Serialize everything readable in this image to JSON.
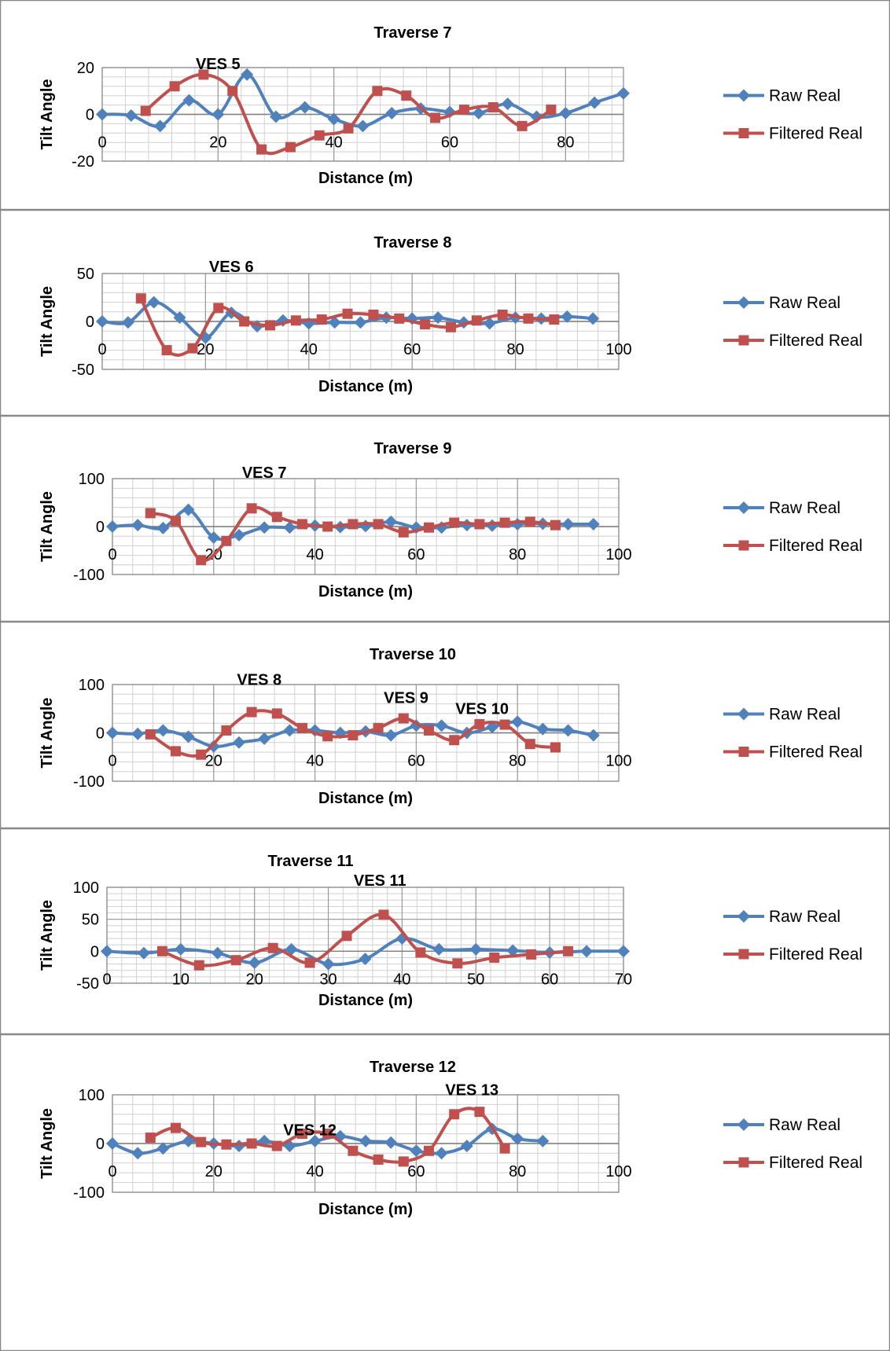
{
  "colors": {
    "raw": "#4F81BD",
    "filtered": "#C0504D",
    "grid": "#b3b3b3",
    "border": "#888888"
  },
  "chart_data": [
    {
      "type": "line",
      "title": "Traverse 7",
      "xlabel": "Distance (m)",
      "ylabel": "Tilt Angle",
      "xlim": [
        0,
        90
      ],
      "ylim": [
        -20,
        20
      ],
      "xticks": [
        0,
        20,
        40,
        60,
        80
      ],
      "yticks": [
        -20,
        0,
        20
      ],
      "grid": true,
      "legend": "right",
      "annotations": [
        {
          "text": "VES 5",
          "x": 20,
          "y": 22
        }
      ],
      "series": [
        {
          "name": "Raw Real",
          "x": [
            0,
            5,
            10,
            15,
            20,
            25,
            30,
            35,
            40,
            45,
            50,
            55,
            60,
            65,
            70,
            75,
            80,
            85,
            90
          ],
          "y": [
            0,
            -0.5,
            -5,
            6,
            0,
            17,
            -1,
            3,
            -2,
            -5,
            0.5,
            2.5,
            1,
            0.5,
            4.5,
            -1,
            0.5,
            5,
            9
          ]
        },
        {
          "name": "Filtered Real",
          "x": [
            7.5,
            12.5,
            17.5,
            22.5,
            27.5,
            32.5,
            37.5,
            42.5,
            47.5,
            52.5,
            57.5,
            62.5,
            67.5,
            72.5,
            77.5
          ],
          "y": [
            1.5,
            12,
            17,
            10,
            -15,
            -14,
            -9,
            -6,
            10,
            8,
            -1.5,
            2,
            3,
            -5,
            2
          ]
        }
      ]
    },
    {
      "type": "line",
      "title": "Traverse 8",
      "xlabel": "Distance (m)",
      "ylabel": "Tilt Angle",
      "xlim": [
        0,
        100
      ],
      "ylim": [
        -50,
        50
      ],
      "xticks": [
        0,
        20,
        40,
        60,
        80,
        100
      ],
      "yticks": [
        -50,
        0,
        50
      ],
      "grid": true,
      "legend": "right",
      "annotations": [
        {
          "text": "VES 6",
          "x": 25,
          "y": 58
        }
      ],
      "series": [
        {
          "name": "Raw Real",
          "x": [
            0,
            5,
            10,
            15,
            20,
            25,
            30,
            35,
            40,
            45,
            50,
            55,
            60,
            65,
            70,
            75,
            80,
            85,
            90,
            95
          ],
          "y": [
            0,
            -1,
            20,
            4,
            -17,
            9,
            -5,
            1,
            -2,
            -1,
            -1,
            4,
            3,
            4,
            -1,
            -2,
            4,
            3,
            5,
            3
          ]
        },
        {
          "name": "Filtered Real",
          "x": [
            7.5,
            12.5,
            17.5,
            22.5,
            27.5,
            32.5,
            37.5,
            42.5,
            47.5,
            52.5,
            57.5,
            62.5,
            67.5,
            72.5,
            77.5,
            82.5,
            87.5
          ],
          "y": [
            24,
            -30,
            -28,
            14,
            0,
            -4,
            1,
            2,
            8,
            7,
            3,
            -3,
            -6,
            1,
            7,
            3,
            2
          ]
        }
      ]
    },
    {
      "type": "line",
      "title": "Traverse 9",
      "xlabel": "Distance (m)",
      "ylabel": "Tilt Angle",
      "xlim": [
        0,
        100
      ],
      "ylim": [
        -100,
        100
      ],
      "xticks": [
        0,
        20,
        40,
        60,
        80,
        100
      ],
      "yticks": [
        -100,
        0,
        100
      ],
      "grid": true,
      "legend": "right",
      "annotations": [
        {
          "text": "VES 7",
          "x": 30,
          "y": 115
        }
      ],
      "series": [
        {
          "name": "Raw Real",
          "x": [
            0,
            5,
            10,
            15,
            20,
            25,
            30,
            35,
            40,
            45,
            50,
            55,
            60,
            65,
            70,
            75,
            80,
            85,
            90,
            95
          ],
          "y": [
            0,
            3,
            -3,
            35,
            -23,
            -18,
            -2,
            -2,
            2,
            -1,
            1,
            10,
            -2,
            -2,
            3,
            2,
            5,
            6,
            5,
            5
          ]
        },
        {
          "name": "Filtered Real",
          "x": [
            7.5,
            12.5,
            17.5,
            22.5,
            27.5,
            32.5,
            37.5,
            42.5,
            47.5,
            52.5,
            57.5,
            62.5,
            67.5,
            72.5,
            77.5,
            82.5,
            87.5
          ],
          "y": [
            28,
            12,
            -70,
            -30,
            38,
            20,
            5,
            0,
            5,
            5,
            -12,
            -2,
            8,
            5,
            8,
            10,
            3
          ]
        }
      ]
    },
    {
      "type": "line",
      "title": "Traverse 10",
      "xlabel": "Distance (m)",
      "ylabel": "Tilt Angle",
      "xlim": [
        0,
        100
      ],
      "ylim": [
        -100,
        100
      ],
      "xticks": [
        0,
        20,
        40,
        60,
        80,
        100
      ],
      "yticks": [
        -100,
        0,
        100
      ],
      "grid": true,
      "legend": "right",
      "annotations": [
        {
          "text": "VES 8",
          "x": 29,
          "y": 112
        },
        {
          "text": "VES 9",
          "x": 58,
          "y": 75
        },
        {
          "text": "VES 10",
          "x": 73,
          "y": 52
        }
      ],
      "series": [
        {
          "name": "Raw Real",
          "x": [
            0,
            5,
            10,
            15,
            20,
            25,
            30,
            35,
            40,
            45,
            50,
            55,
            60,
            65,
            70,
            75,
            80,
            85,
            90,
            95
          ],
          "y": [
            0,
            -2,
            5,
            -8,
            -28,
            -20,
            -12,
            5,
            5,
            0,
            3,
            -5,
            15,
            15,
            0,
            12,
            23,
            8,
            5,
            -5
          ]
        },
        {
          "name": "Filtered Real",
          "x": [
            7.5,
            12.5,
            17.5,
            22.5,
            27.5,
            32.5,
            37.5,
            42.5,
            47.5,
            52.5,
            57.5,
            62.5,
            67.5,
            72.5,
            77.5,
            82.5,
            87.5
          ],
          "y": [
            -3,
            -38,
            -45,
            5,
            43,
            40,
            10,
            -7,
            -5,
            10,
            30,
            5,
            -15,
            18,
            17,
            -23,
            -30
          ]
        }
      ]
    },
    {
      "type": "line",
      "title": "Traverse 11",
      "xlabel": "Distance (m)",
      "ylabel": "Tilt Angle",
      "xlim": [
        0,
        70
      ],
      "ylim": [
        -50,
        100
      ],
      "xticks": [
        0,
        10,
        20,
        30,
        40,
        50,
        60,
        70
      ],
      "yticks": [
        -50,
        0,
        50,
        100
      ],
      "grid": true,
      "legend": "right",
      "annotations": [
        {
          "text": "VES 11",
          "x": 37,
          "y": 112
        }
      ],
      "series": [
        {
          "name": "Raw Real",
          "x": [
            0,
            5,
            10,
            15,
            20,
            25,
            30,
            35,
            40,
            45,
            50,
            55,
            60,
            65,
            70
          ],
          "y": [
            0,
            -3,
            3,
            -3,
            -18,
            3,
            -20,
            -12,
            20,
            3,
            3,
            1,
            -2,
            0,
            0
          ]
        },
        {
          "name": "Filtered Real",
          "x": [
            7.5,
            12.5,
            17.5,
            22.5,
            27.5,
            32.5,
            37.5,
            42.5,
            47.5,
            52.5,
            57.5,
            62.5
          ],
          "y": [
            0,
            -22,
            -14,
            5,
            -18,
            24,
            57,
            -2,
            -19,
            -10,
            -5,
            0
          ]
        }
      ]
    },
    {
      "type": "line",
      "title": "Traverse 12",
      "xlabel": "Distance (m)",
      "ylabel": "Tilt Angle",
      "xlim": [
        0,
        100
      ],
      "ylim": [
        -100,
        100
      ],
      "xticks": [
        0,
        20,
        40,
        60,
        80,
        100
      ],
      "yticks": [
        -100,
        0,
        100
      ],
      "grid": true,
      "legend": "right",
      "annotations": [
        {
          "text": "VES 12",
          "x": 39,
          "y": 30
        },
        {
          "text": "VES 13",
          "x": 71,
          "y": 112
        }
      ],
      "series": [
        {
          "name": "Raw Real",
          "x": [
            0,
            5,
            10,
            15,
            20,
            25,
            30,
            35,
            40,
            45,
            50,
            55,
            60,
            65,
            70,
            75,
            80,
            85
          ],
          "y": [
            0,
            -20,
            -10,
            5,
            0,
            -5,
            5,
            -5,
            5,
            15,
            5,
            2,
            -15,
            -20,
            -5,
            30,
            10,
            5
          ]
        },
        {
          "name": "Filtered Real",
          "x": [
            7.5,
            12.5,
            17.5,
            22.5,
            27.5,
            32.5,
            37.5,
            42.5,
            47.5,
            52.5,
            57.5,
            62.5,
            67.5,
            72.5,
            77.5
          ],
          "y": [
            12,
            32,
            3,
            -2,
            0,
            -5,
            20,
            20,
            -15,
            -33,
            -37,
            -15,
            60,
            65,
            -10
          ]
        }
      ]
    }
  ]
}
